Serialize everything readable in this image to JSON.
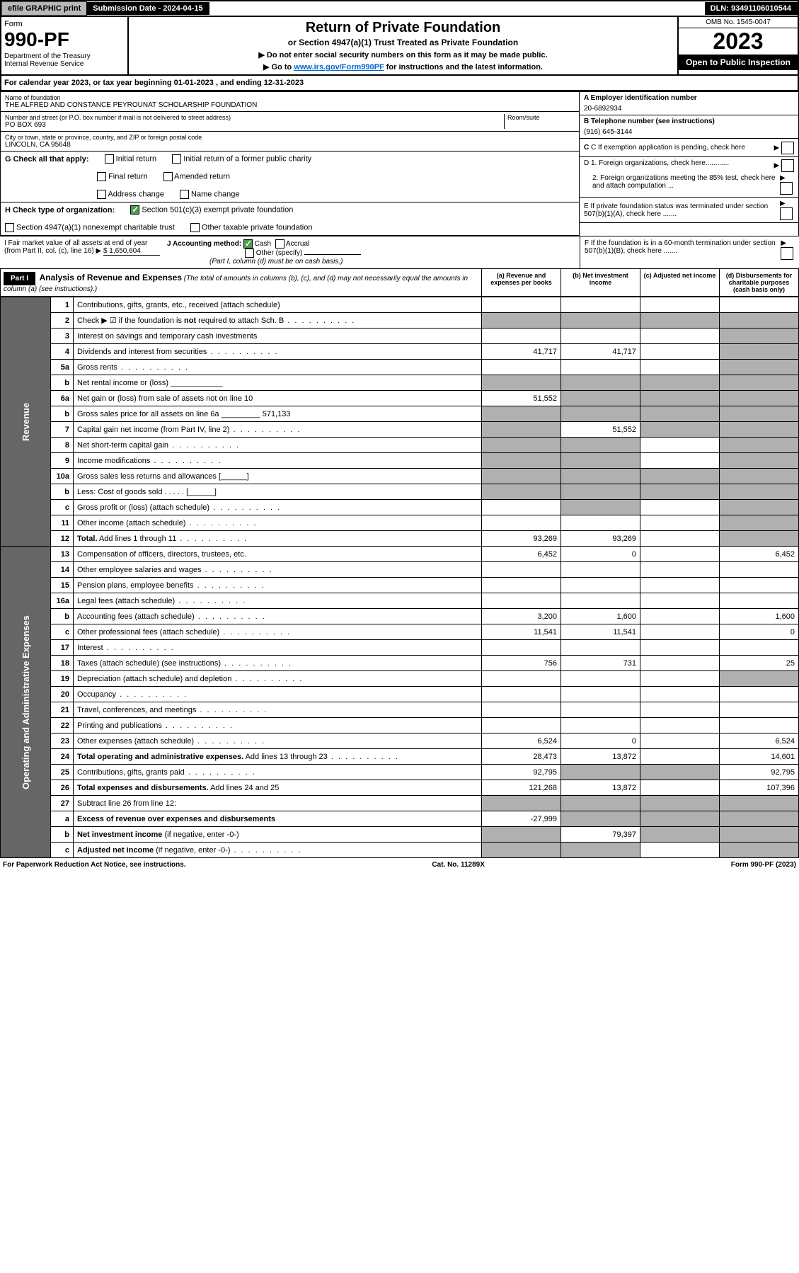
{
  "topbar": {
    "efile": "efile GRAPHIC print",
    "sub_label": "Submission Date - 2024-04-15",
    "dln": "DLN: 93491106010544"
  },
  "header": {
    "form_word": "Form",
    "form_no": "990-PF",
    "dept": "Department of the Treasury",
    "irs": "Internal Revenue Service",
    "title": "Return of Private Foundation",
    "subtitle": "or Section 4947(a)(1) Trust Treated as Private Foundation",
    "note1": "▶ Do not enter social security numbers on this form as it may be made public.",
    "note2_pre": "▶ Go to ",
    "note2_link": "www.irs.gov/Form990PF",
    "note2_post": " for instructions and the latest information.",
    "omb": "OMB No. 1545-0047",
    "year": "2023",
    "open": "Open to Public Inspection"
  },
  "calyear": "For calendar year 2023, or tax year beginning 01-01-2023                           , and ending 12-31-2023",
  "entity": {
    "name_label": "Name of foundation",
    "name": "THE ALFRED AND CONSTANCE PEYROUNAT SCHOLARSHIP FOUNDATION",
    "addr_label": "Number and street (or P.O. box number if mail is not delivered to street address)",
    "room_label": "Room/suite",
    "addr": "PO BOX 693",
    "city_label": "City or town, state or province, country, and ZIP or foreign postal code",
    "city": "LINCOLN, CA  95648",
    "a_label": "A Employer identification number",
    "ein": "20-6892934",
    "b_label": "B Telephone number (see instructions)",
    "phone": "(916) 645-3144",
    "c_label": "C If exemption application is pending, check here"
  },
  "g": {
    "label": "G Check all that apply:",
    "o1": "Initial return",
    "o2": "Initial return of a former public charity",
    "o3": "Final return",
    "o4": "Amended return",
    "o5": "Address change",
    "o6": "Name change"
  },
  "d": {
    "d1": "D 1. Foreign organizations, check here............",
    "d2": "2. Foreign organizations meeting the 85% test, check here and attach computation ..."
  },
  "h": {
    "label": "H Check type of organization:",
    "o1": "Section 501(c)(3) exempt private foundation",
    "o2": "Section 4947(a)(1) nonexempt charitable trust",
    "o3": "Other taxable private foundation"
  },
  "e_label": "E  If private foundation status was terminated under section 507(b)(1)(A), check here .......",
  "i": {
    "label": "I Fair market value of all assets at end of year (from Part II, col. (c), line 16)",
    "value": "$  1,650,604"
  },
  "j": {
    "label": "J Accounting method:",
    "o1": "Cash",
    "o2": "Accrual",
    "o3": "Other (specify)",
    "note": "(Part I, column (d) must be on cash basis.)"
  },
  "f_label": "F  If the foundation is in a 60-month termination under section 507(b)(1)(B), check here .......",
  "part1": {
    "hdr": "Part I",
    "title": "Analysis of Revenue and Expenses",
    "sub": "(The total of amounts in columns (b), (c), and (d) may not necessarily equal the amounts in column (a) (see instructions).)",
    "col_a": "(a)   Revenue and expenses per books",
    "col_b": "(b)   Net investment income",
    "col_c": "(c)   Adjusted net income",
    "col_d": "(d)   Disbursements for charitable purposes (cash basis only)"
  },
  "vlabels": {
    "rev": "Revenue",
    "exp": "Operating and Administrative Expenses"
  },
  "rows": [
    {
      "n": "1",
      "t": "Contributions, gifts, grants, etc., received (attach schedule)",
      "a": "",
      "b": "",
      "c": "",
      "d": "",
      "sc": "",
      "sd": ""
    },
    {
      "n": "2",
      "t": "Check ▶ ☑ if the foundation is <b>not</b> required to attach Sch. B",
      "dots": 1,
      "a": "",
      "b": "",
      "c": "",
      "d": "",
      "sa": "s",
      "sb": "s",
      "sc": "s",
      "sd": "s"
    },
    {
      "n": "3",
      "t": "Interest on savings and temporary cash investments",
      "a": "",
      "b": "",
      "c": "",
      "d": "",
      "sd": "s"
    },
    {
      "n": "4",
      "t": "Dividends and interest from securities",
      "dots": 1,
      "a": "41,717",
      "b": "41,717",
      "c": "",
      "d": "",
      "sd": "s"
    },
    {
      "n": "5a",
      "t": "Gross rents",
      "dots": 1,
      "a": "",
      "b": "",
      "c": "",
      "d": "",
      "sd": "s"
    },
    {
      "n": "b",
      "t": "Net rental income or (loss)  ____________",
      "a": "",
      "b": "",
      "c": "",
      "d": "",
      "sa": "s",
      "sb": "s",
      "sc": "s",
      "sd": "s"
    },
    {
      "n": "6a",
      "t": "Net gain or (loss) from sale of assets not on line 10",
      "a": "51,552",
      "b": "",
      "c": "",
      "d": "",
      "sb": "s",
      "sc": "s",
      "sd": "s"
    },
    {
      "n": "b",
      "t": "Gross sales price for all assets on line 6a _________ 571,133",
      "a": "",
      "b": "",
      "c": "",
      "d": "",
      "sa": "s",
      "sb": "s",
      "sc": "s",
      "sd": "s"
    },
    {
      "n": "7",
      "t": "Capital gain net income (from Part IV, line 2)",
      "dots": 1,
      "a": "",
      "b": "51,552",
      "c": "",
      "d": "",
      "sa": "s",
      "sc": "s",
      "sd": "s"
    },
    {
      "n": "8",
      "t": "Net short-term capital gain",
      "dots": 1,
      "a": "",
      "b": "",
      "c": "",
      "d": "",
      "sa": "s",
      "sb": "s",
      "sd": "s"
    },
    {
      "n": "9",
      "t": "Income modifications",
      "dots": 1,
      "a": "",
      "b": "",
      "c": "",
      "d": "",
      "sa": "s",
      "sb": "s",
      "sd": "s"
    },
    {
      "n": "10a",
      "t": "Gross sales less returns and allowances  [______]",
      "a": "",
      "b": "",
      "c": "",
      "d": "",
      "sa": "s",
      "sb": "s",
      "sc": "s",
      "sd": "s"
    },
    {
      "n": "b",
      "t": "Less: Cost of goods sold     .  .  .  .  .     [______]",
      "a": "",
      "b": "",
      "c": "",
      "d": "",
      "sa": "s",
      "sb": "s",
      "sc": "s",
      "sd": "s"
    },
    {
      "n": "c",
      "t": "Gross profit or (loss) (attach schedule)",
      "dots": 1,
      "a": "",
      "b": "",
      "c": "",
      "d": "",
      "sb": "s",
      "sd": "s"
    },
    {
      "n": "11",
      "t": "Other income (attach schedule)",
      "dots": 1,
      "a": "",
      "b": "",
      "c": "",
      "d": "",
      "sd": "s"
    },
    {
      "n": "12",
      "t": "<b>Total.</b> Add lines 1 through 11",
      "dots": 1,
      "a": "93,269",
      "b": "93,269",
      "c": "",
      "d": "",
      "sd": "s"
    },
    {
      "n": "13",
      "t": "Compensation of officers, directors, trustees, etc.",
      "a": "6,452",
      "b": "0",
      "c": "",
      "d": "6,452"
    },
    {
      "n": "14",
      "t": "Other employee salaries and wages",
      "dots": 1,
      "a": "",
      "b": "",
      "c": "",
      "d": ""
    },
    {
      "n": "15",
      "t": "Pension plans, employee benefits",
      "dots": 1,
      "a": "",
      "b": "",
      "c": "",
      "d": ""
    },
    {
      "n": "16a",
      "t": "Legal fees (attach schedule)",
      "dots": 1,
      "a": "",
      "b": "",
      "c": "",
      "d": ""
    },
    {
      "n": "b",
      "t": "Accounting fees (attach schedule)",
      "dots": 1,
      "a": "3,200",
      "b": "1,600",
      "c": "",
      "d": "1,600"
    },
    {
      "n": "c",
      "t": "Other professional fees (attach schedule)",
      "dots": 1,
      "a": "11,541",
      "b": "11,541",
      "c": "",
      "d": "0"
    },
    {
      "n": "17",
      "t": "Interest",
      "dots": 1,
      "a": "",
      "b": "",
      "c": "",
      "d": ""
    },
    {
      "n": "18",
      "t": "Taxes (attach schedule) (see instructions)",
      "dots": 1,
      "a": "756",
      "b": "731",
      "c": "",
      "d": "25"
    },
    {
      "n": "19",
      "t": "Depreciation (attach schedule) and depletion",
      "dots": 1,
      "a": "",
      "b": "",
      "c": "",
      "d": "",
      "sd": "s"
    },
    {
      "n": "20",
      "t": "Occupancy",
      "dots": 1,
      "a": "",
      "b": "",
      "c": "",
      "d": ""
    },
    {
      "n": "21",
      "t": "Travel, conferences, and meetings",
      "dots": 1,
      "a": "",
      "b": "",
      "c": "",
      "d": ""
    },
    {
      "n": "22",
      "t": "Printing and publications",
      "dots": 1,
      "a": "",
      "b": "",
      "c": "",
      "d": ""
    },
    {
      "n": "23",
      "t": "Other expenses (attach schedule)",
      "dots": 1,
      "a": "6,524",
      "b": "0",
      "c": "",
      "d": "6,524"
    },
    {
      "n": "24",
      "t": "<b>Total operating and administrative expenses.</b> Add lines 13 through 23",
      "dots": 1,
      "a": "28,473",
      "b": "13,872",
      "c": "",
      "d": "14,601"
    },
    {
      "n": "25",
      "t": "Contributions, gifts, grants paid",
      "dots": 1,
      "a": "92,795",
      "b": "",
      "c": "",
      "d": "92,795",
      "sb": "s",
      "sc": "s"
    },
    {
      "n": "26",
      "t": "<b>Total expenses and disbursements.</b> Add lines 24 and 25",
      "a": "121,268",
      "b": "13,872",
      "c": "",
      "d": "107,396"
    },
    {
      "n": "27",
      "t": "Subtract line 26 from line 12:",
      "a": "",
      "b": "",
      "c": "",
      "d": "",
      "sa": "s",
      "sb": "s",
      "sc": "s",
      "sd": "s"
    },
    {
      "n": "a",
      "t": "<b>Excess of revenue over expenses and disbursements</b>",
      "a": "-27,999",
      "b": "",
      "c": "",
      "d": "",
      "sb": "s",
      "sc": "s",
      "sd": "s"
    },
    {
      "n": "b",
      "t": "<b>Net investment income</b> (if negative, enter -0-)",
      "a": "",
      "b": "79,397",
      "c": "",
      "d": "",
      "sa": "s",
      "sc": "s",
      "sd": "s"
    },
    {
      "n": "c",
      "t": "<b>Adjusted net income</b> (if negative, enter -0-)",
      "dots": 1,
      "a": "",
      "b": "",
      "c": "",
      "d": "",
      "sa": "s",
      "sb": "s",
      "sd": "s"
    }
  ],
  "footer": {
    "left": "For Paperwork Reduction Act Notice, see instructions.",
    "mid": "Cat. No. 11289X",
    "right": "Form 990-PF (2023)"
  },
  "colors": {
    "shade": "#b0b0b0",
    "vtab": "#666666",
    "link": "#0066cc",
    "check": "#4a9d4a"
  }
}
